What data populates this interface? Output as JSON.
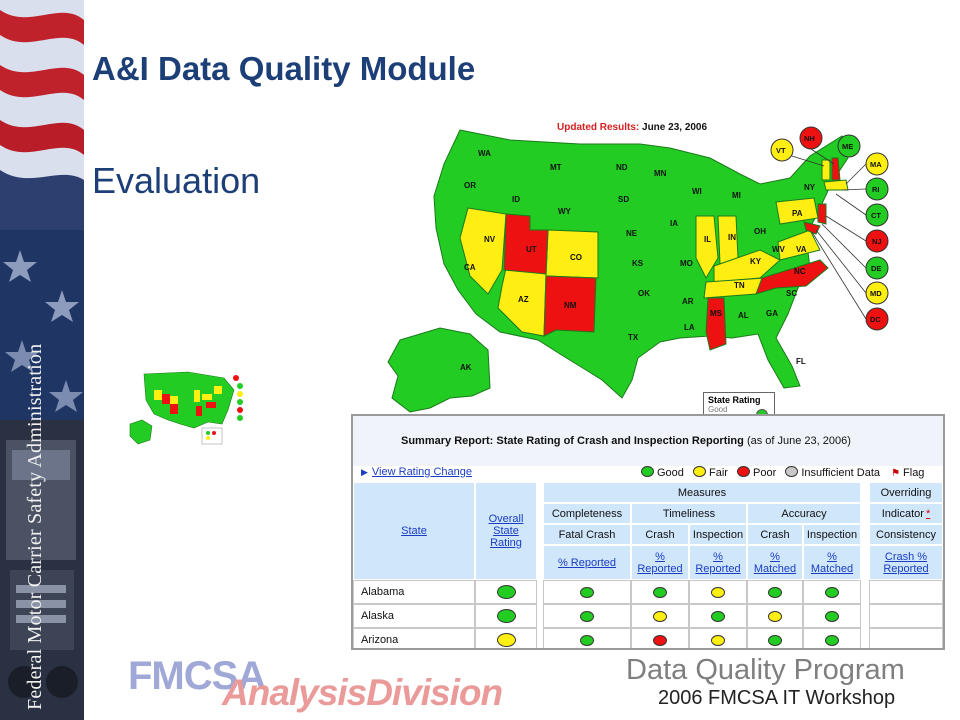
{
  "side_banner": {
    "text": "Federal Motor Carrier Safety Administration"
  },
  "slide": {
    "title": "A&I Data Quality Module",
    "subtitle": "Evaluation"
  },
  "map": {
    "updated_label": "Updated Results:",
    "updated_date": "June 23, 2006",
    "legend_title": "State Rating",
    "legend_partial": "Good",
    "colors": {
      "good": "#22cc22",
      "fair": "#ffee11",
      "poor": "#ee1111"
    },
    "states": [
      "WA",
      "OR",
      "CA",
      "NV",
      "ID",
      "MT",
      "WY",
      "UT",
      "AZ",
      "CO",
      "NM",
      "ND",
      "SD",
      "NE",
      "KS",
      "OK",
      "TX",
      "MN",
      "IA",
      "MO",
      "AR",
      "LA",
      "WI",
      "IL",
      "MI",
      "IN",
      "OH",
      "KY",
      "TN",
      "MS",
      "AL",
      "GA",
      "FL",
      "SC",
      "NC",
      "VA",
      "WV",
      "PA",
      "NY",
      "ME",
      "AK"
    ],
    "callouts": [
      "NH",
      "VT",
      "ME",
      "MA",
      "RI",
      "CT",
      "NJ",
      "DE",
      "MD",
      "DC"
    ]
  },
  "report": {
    "title": "Summary Report: State Rating of Crash and Inspection Reporting",
    "as_of": "(as of June 23, 2006)",
    "view_link": "View Rating Change",
    "legend": {
      "good": "Good",
      "fair": "Fair",
      "poor": "Poor",
      "insufficient": "Insufficient Data",
      "flag": "Flag"
    },
    "headers": {
      "state": "State",
      "overall": "Overall State Rating",
      "measures": "Measures",
      "completeness": "Completeness",
      "timeliness": "Timeliness",
      "accuracy": "Accuracy",
      "overriding": "Overriding",
      "indicator": "Indicator",
      "asterisk": "*",
      "fatal_crash": "Fatal Crash",
      "crash": "Crash",
      "inspection": "Inspection",
      "consistency": "Consistency",
      "pct_reported": "% Reported",
      "pct": "%",
      "reported": "Reported",
      "matched": "Matched",
      "crash_pct": "Crash %"
    },
    "rows": [
      {
        "state": "Alabama",
        "overall": "good",
        "ratings": [
          "good",
          "good",
          "fair",
          "good",
          "good"
        ]
      },
      {
        "state": "Alaska",
        "overall": "good",
        "ratings": [
          "good",
          "fair",
          "good",
          "fair",
          "good"
        ]
      },
      {
        "state": "Arizona",
        "overall": "fair",
        "ratings": [
          "good",
          "poor",
          "fair",
          "good",
          "good"
        ]
      }
    ]
  },
  "footer": {
    "fmcsa": "FMCSA",
    "analysis": "AnalysisDivision",
    "program": "Data Quality Program",
    "workshop": "2006 FMCSA IT Workshop"
  }
}
